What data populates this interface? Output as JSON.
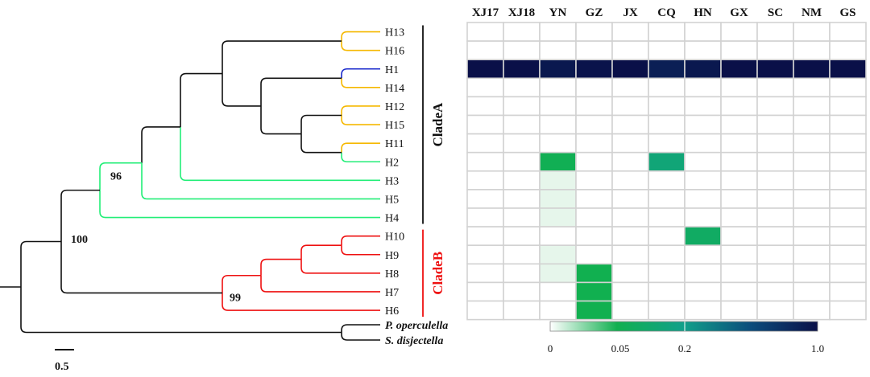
{
  "chart_data": {
    "type": "heatmap",
    "title": "",
    "columns": [
      "XJ17",
      "XJ18",
      "YN",
      "GZ",
      "JX",
      "CQ",
      "HN",
      "GX",
      "SC",
      "NM",
      "GS"
    ],
    "rows": [
      "H13",
      "H16",
      "H1",
      "H14",
      "H12",
      "H15",
      "H11",
      "H2",
      "H3",
      "H5",
      "H4",
      "H10",
      "H9",
      "H8",
      "H7",
      "H6"
    ],
    "values": [
      [
        0,
        0,
        0,
        0,
        0,
        0,
        0,
        0,
        0,
        0,
        0
      ],
      [
        0,
        0,
        0,
        0,
        0,
        0,
        0,
        0,
        0,
        0,
        0
      ],
      [
        1.0,
        1.0,
        0.95,
        0.98,
        1.0,
        0.9,
        0.95,
        1.0,
        1.0,
        1.0,
        1.0
      ],
      [
        0,
        0,
        0,
        0,
        0,
        0,
        0,
        0,
        0,
        0,
        0
      ],
      [
        0,
        0,
        0,
        0,
        0,
        0,
        0,
        0,
        0,
        0,
        0
      ],
      [
        0,
        0,
        0,
        0,
        0,
        0,
        0,
        0,
        0,
        0,
        0
      ],
      [
        0,
        0,
        0,
        0,
        0,
        0,
        0,
        0,
        0,
        0,
        0
      ],
      [
        0,
        0,
        0.06,
        0,
        0,
        0.15,
        0,
        0,
        0,
        0,
        0
      ],
      [
        0,
        0,
        0.01,
        0,
        0,
        0,
        0,
        0,
        0,
        0,
        0
      ],
      [
        0,
        0,
        0.01,
        0,
        0,
        0,
        0,
        0,
        0,
        0,
        0
      ],
      [
        0,
        0,
        0.01,
        0,
        0,
        0,
        0,
        0,
        0,
        0,
        0
      ],
      [
        0,
        0,
        0,
        0,
        0,
        0,
        0.1,
        0,
        0,
        0,
        0
      ],
      [
        0,
        0,
        0.01,
        0,
        0,
        0,
        0,
        0,
        0,
        0,
        0
      ],
      [
        0,
        0,
        0.01,
        0.05,
        0,
        0,
        0,
        0,
        0,
        0,
        0
      ],
      [
        0,
        0,
        0,
        0.05,
        0,
        0,
        0,
        0,
        0,
        0,
        0
      ],
      [
        0,
        0,
        0,
        0.05,
        0,
        0,
        0,
        0,
        0,
        0,
        0
      ]
    ],
    "colorbar": {
      "ticks": [
        "0",
        "0.05",
        "0.2",
        "1.0"
      ]
    },
    "tree": {
      "tips": [
        "H13",
        "H16",
        "H1",
        "H14",
        "H12",
        "H15",
        "H11",
        "H2",
        "H3",
        "H5",
        "H4",
        "H10",
        "H9",
        "H8",
        "H7",
        "H6",
        "P. operculella",
        "S. disjectella"
      ],
      "bootstrap": [
        "96",
        "100",
        "99"
      ],
      "clades": [
        "CladeA",
        "CladeB"
      ],
      "scale_label": "0.5"
    }
  },
  "colors": {
    "yellow_branch": "#f5b800",
    "blue_branch": "#1a2acc",
    "green_branch": "#22ee77",
    "red_branch": "#ee1111",
    "black_branch": "#111111",
    "cladeA": "#111111",
    "cladeB": "#ee1111",
    "grid": "#d2d2d2"
  }
}
